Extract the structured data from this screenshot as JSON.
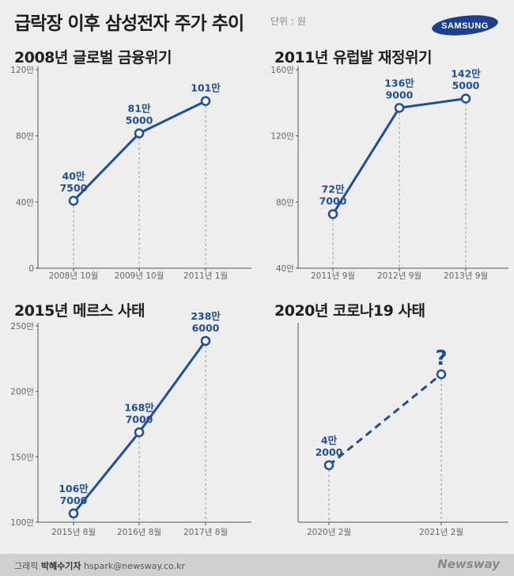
{
  "header": {
    "title": "급락장 이후 삼성전자 주가 추이",
    "unit": "단위 : 원",
    "logo_text": "SAMSUNG",
    "logo_color": "#1c3f8f"
  },
  "footer": {
    "credit_label": "그래픽",
    "credit_name": "박혜수기자",
    "email": "hspark@newsway.co.kr",
    "brand": "Newsway"
  },
  "accent_color": "#1f4e9c",
  "chart_data": [
    {
      "type": "line",
      "title": "2008년 글로벌 금융위기",
      "categories": [
        "2008년 10월",
        "2009년 10월",
        "2011년 1월"
      ],
      "values": [
        407500,
        815000,
        1010000
      ],
      "labels": [
        [
          "40만",
          "7500"
        ],
        [
          "81만",
          "5000"
        ],
        [
          "101만",
          ""
        ]
      ],
      "yticks": [
        "0",
        "40만",
        "80만",
        "120만"
      ],
      "ylim": [
        0,
        1200000
      ],
      "line_style": "solid"
    },
    {
      "type": "line",
      "title": "2011년 유럽발 재정위기",
      "categories": [
        "2011년 9월",
        "2012년 9월",
        "2013년 9월"
      ],
      "values": [
        727000,
        1369000,
        1425000
      ],
      "labels": [
        [
          "72만",
          "7000"
        ],
        [
          "136만",
          "9000"
        ],
        [
          "142만",
          "5000"
        ]
      ],
      "yticks": [
        "40만",
        "80만",
        "120만",
        "160만"
      ],
      "ylim": [
        400000,
        1600000
      ],
      "line_style": "solid"
    },
    {
      "type": "line",
      "title": "2015년 메르스 사태",
      "categories": [
        "2015년 8월",
        "2016년 8월",
        "2017년 8월"
      ],
      "values": [
        1067000,
        1687000,
        2386000
      ],
      "labels": [
        [
          "106만",
          "7000"
        ],
        [
          "168만",
          "7000"
        ],
        [
          "238만",
          "6000"
        ]
      ],
      "yticks": [
        "100만",
        "150만",
        "200만",
        "250만"
      ],
      "ylim": [
        1000000,
        2500000
      ],
      "line_style": "solid"
    },
    {
      "type": "line",
      "title": "2020년 코로나19 사태",
      "categories": [
        "2020년 2월",
        "2021년 2월"
      ],
      "values": [
        42000,
        null
      ],
      "labels": [
        [
          "4만",
          "2000"
        ],
        [
          "?",
          ""
        ]
      ],
      "yticks": [],
      "line_style": "dashed"
    }
  ]
}
